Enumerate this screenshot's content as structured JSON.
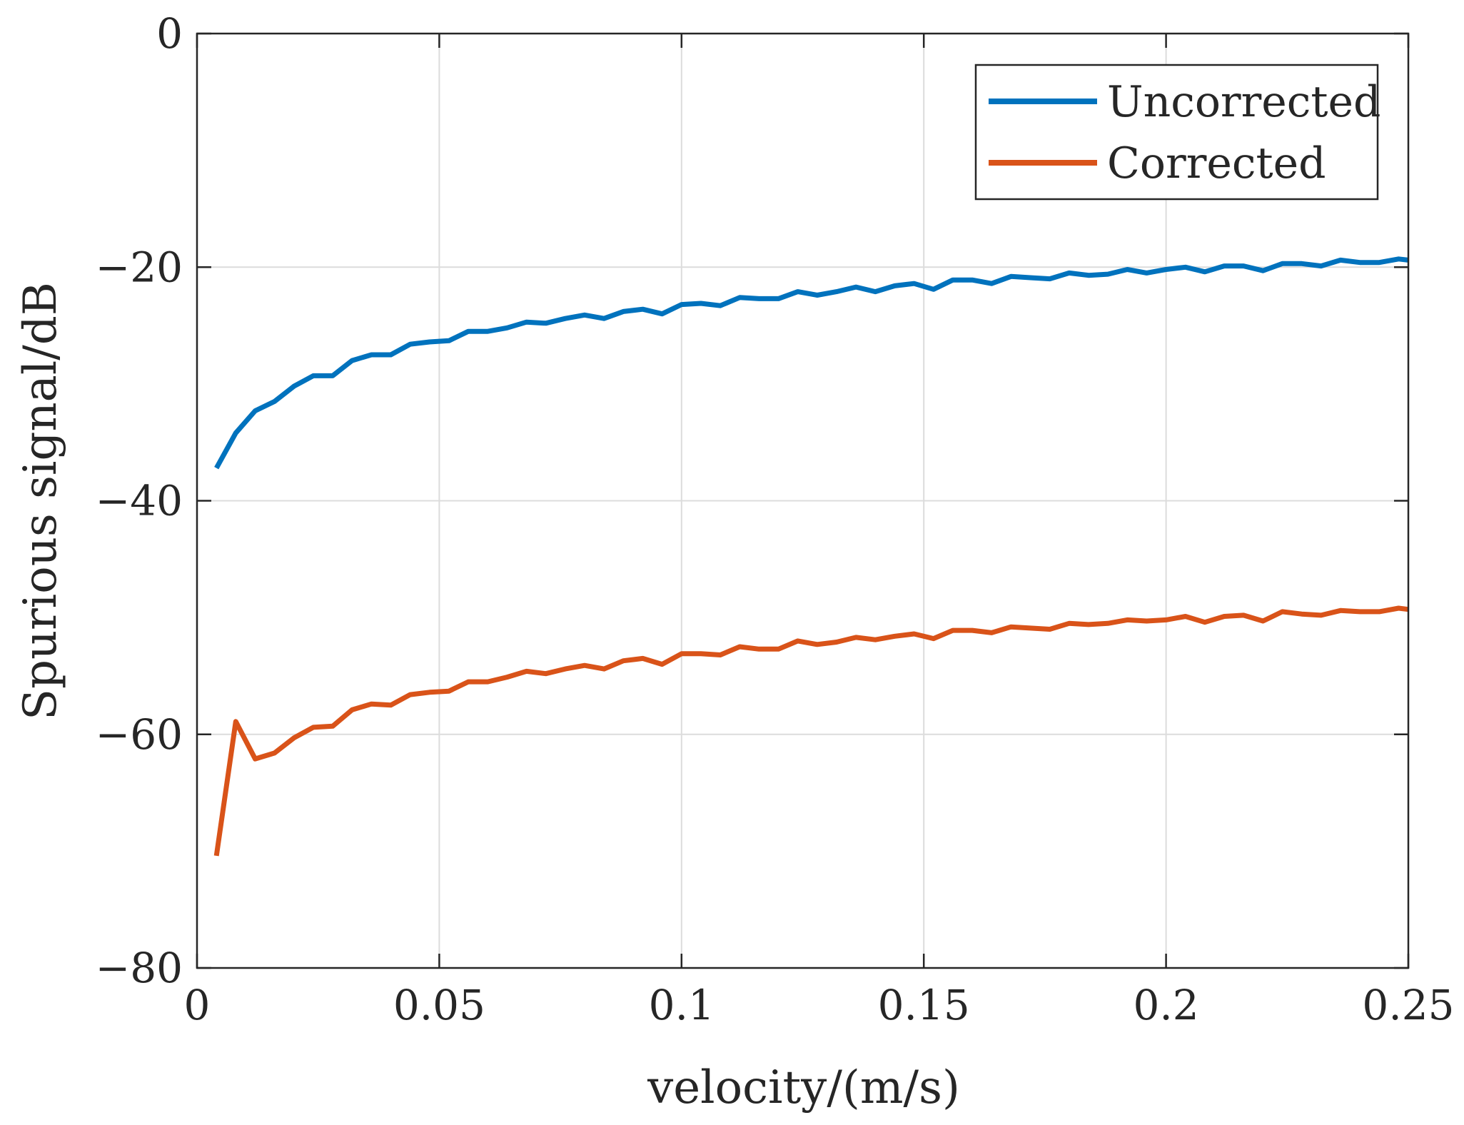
{
  "chart_data": {
    "type": "line",
    "title": "",
    "xlabel": "velocity/(m/s)",
    "ylabel": "Spurious signal/dB",
    "xlim": [
      0,
      0.25
    ],
    "ylim": [
      -80,
      0
    ],
    "grid": true,
    "legend_position": "top-right",
    "x_ticks": [
      0,
      0.05,
      0.1,
      0.15,
      0.2,
      0.25
    ],
    "x_tick_labels": [
      "0",
      "0.05",
      "0.1",
      "0.15",
      "0.2",
      "0.25"
    ],
    "y_ticks": [
      -80,
      -60,
      -40,
      -20,
      0
    ],
    "y_tick_labels": [
      "−80",
      "−60",
      "−40",
      "−20",
      "0"
    ],
    "x": [
      0.004,
      0.008,
      0.012,
      0.016,
      0.02,
      0.024,
      0.028,
      0.032,
      0.036,
      0.04,
      0.044,
      0.048,
      0.052,
      0.056,
      0.06,
      0.064,
      0.068,
      0.072,
      0.076,
      0.08,
      0.084,
      0.088,
      0.092,
      0.096,
      0.1,
      0.104,
      0.108,
      0.112,
      0.116,
      0.12,
      0.124,
      0.128,
      0.132,
      0.136,
      0.14,
      0.144,
      0.148,
      0.152,
      0.156,
      0.16,
      0.164,
      0.168,
      0.172,
      0.176,
      0.18,
      0.184,
      0.188,
      0.192,
      0.196,
      0.2,
      0.204,
      0.208,
      0.212,
      0.216,
      0.22,
      0.224,
      0.228,
      0.232,
      0.236,
      0.24,
      0.244,
      0.248,
      0.25
    ],
    "series": [
      {
        "name": "Uncorrected",
        "color": "#0072BD",
        "values": [
          -37.2,
          -34.2,
          -32.3,
          -31.5,
          -30.2,
          -29.3,
          -29.3,
          -28.0,
          -27.5,
          -27.5,
          -26.6,
          -26.4,
          -26.3,
          -25.5,
          -25.5,
          -25.2,
          -24.7,
          -24.8,
          -24.4,
          -24.1,
          -24.4,
          -23.8,
          -23.6,
          -24.0,
          -23.2,
          -23.1,
          -23.3,
          -22.6,
          -22.7,
          -22.7,
          -22.1,
          -22.4,
          -22.1,
          -21.7,
          -22.1,
          -21.6,
          -21.4,
          -21.9,
          -21.1,
          -21.1,
          -21.4,
          -20.8,
          -20.9,
          -21.0,
          -20.5,
          -20.7,
          -20.6,
          -20.2,
          -20.5,
          -20.2,
          -20.0,
          -20.4,
          -19.9,
          -19.9,
          -20.3,
          -19.7,
          -19.7,
          -19.9,
          -19.4,
          -19.6,
          -19.6,
          -19.3,
          -19.4
        ]
      },
      {
        "name": "Corrected",
        "color": "#D95319",
        "values": [
          -70.4,
          -58.9,
          -62.1,
          -61.6,
          -60.3,
          -59.4,
          -59.3,
          -57.9,
          -57.4,
          -57.5,
          -56.6,
          -56.4,
          -56.3,
          -55.5,
          -55.5,
          -55.1,
          -54.6,
          -54.8,
          -54.4,
          -54.1,
          -54.4,
          -53.7,
          -53.5,
          -54.0,
          -53.1,
          -53.1,
          -53.2,
          -52.5,
          -52.7,
          -52.7,
          -52.0,
          -52.3,
          -52.1,
          -51.7,
          -51.9,
          -51.6,
          -51.4,
          -51.8,
          -51.1,
          -51.1,
          -51.3,
          -50.8,
          -50.9,
          -51.0,
          -50.5,
          -50.6,
          -50.5,
          -50.2,
          -50.3,
          -50.2,
          -49.9,
          -50.4,
          -49.9,
          -49.8,
          -50.3,
          -49.5,
          -49.7,
          -49.8,
          -49.4,
          -49.5,
          -49.5,
          -49.2,
          -49.3
        ]
      }
    ]
  }
}
